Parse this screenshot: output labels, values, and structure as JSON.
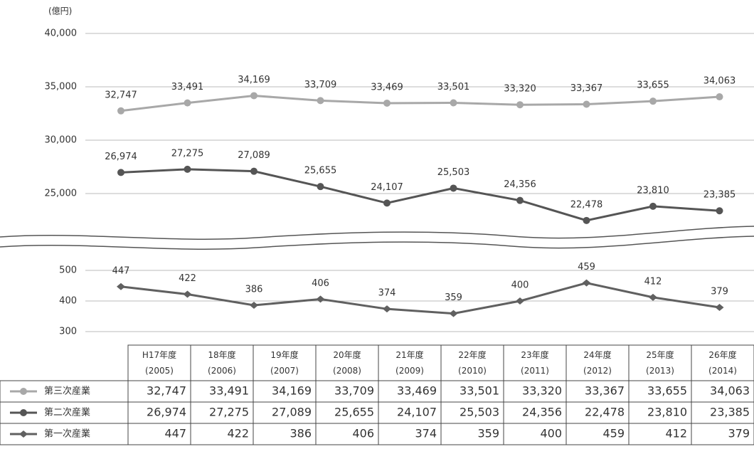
{
  "chart_data": [
    {
      "type": "line",
      "ylabel": "(億円)",
      "categories": [
        "H17年度 (2005)",
        "18年度 (2006)",
        "19年度 (2007)",
        "20年度 (2008)",
        "21年度 (2009)",
        "22年度 (2010)",
        "23年度 (2011)",
        "24年度 (2012)",
        "25年度 (2013)",
        "26年度 (2014)"
      ],
      "ylim": [
        21000,
        40000
      ],
      "yticks": [
        {
          "value": 25000,
          "label": "25,000"
        },
        {
          "value": 30000,
          "label": "30,000"
        },
        {
          "value": 35000,
          "label": "35,000"
        },
        {
          "value": 40000,
          "label": "40,000"
        }
      ],
      "grid": true,
      "series": [
        {
          "name": "第三次産業",
          "color": "#a8a8a8",
          "marker": "circle",
          "values": [
            32747,
            33491,
            34169,
            33709,
            33469,
            33501,
            33320,
            33367,
            33655,
            34063
          ],
          "value_labels": [
            "32,747",
            "33,491",
            "34,169",
            "33,709",
            "33,469",
            "33,501",
            "33,320",
            "33,367",
            "33,655",
            "34,063"
          ]
        },
        {
          "name": "第二次産業",
          "color": "#555555",
          "marker": "circle",
          "values": [
            26974,
            27275,
            27089,
            25655,
            24107,
            25503,
            24356,
            22478,
            23810,
            23385
          ],
          "value_labels": [
            "26,974",
            "27,275",
            "27,089",
            "25,655",
            "24,107",
            "25,503",
            "24,356",
            "22,478",
            "23,810",
            "23,385"
          ]
        }
      ]
    },
    {
      "type": "line",
      "ylim": [
        300,
        500
      ],
      "yticks": [
        300,
        400,
        500
      ],
      "grid": true,
      "series": [
        {
          "name": "第一次産業",
          "color": "#606060",
          "marker": "diamond",
          "values": [
            447,
            422,
            386,
            406,
            374,
            359,
            400,
            459,
            412,
            379
          ]
        }
      ]
    }
  ]
}
